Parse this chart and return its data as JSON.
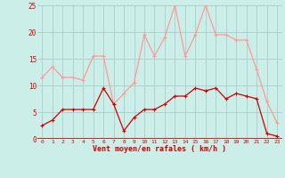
{
  "hours": [
    0,
    1,
    2,
    3,
    4,
    5,
    6,
    7,
    8,
    9,
    10,
    11,
    12,
    13,
    14,
    15,
    16,
    17,
    18,
    19,
    20,
    21,
    22,
    23
  ],
  "wind_avg": [
    2.5,
    3.5,
    5.5,
    5.5,
    5.5,
    5.5,
    9.5,
    6.5,
    1.5,
    4.0,
    5.5,
    5.5,
    6.5,
    8.0,
    8.0,
    9.5,
    9.0,
    9.5,
    7.5,
    8.5,
    8.0,
    7.5,
    1.0,
    0.5
  ],
  "wind_gust": [
    11.5,
    13.5,
    11.5,
    11.5,
    11.0,
    15.5,
    15.5,
    6.5,
    8.5,
    10.5,
    19.5,
    15.5,
    19.0,
    25.0,
    15.5,
    19.5,
    25.0,
    19.5,
    19.5,
    18.5,
    18.5,
    13.0,
    7.0,
    3.0
  ],
  "avg_color": "#cc0000",
  "gust_color": "#ff9999",
  "bg_color": "#cceee8",
  "grid_color": "#aacccc",
  "xlabel": "Vent moyen/en rafales ( km/h )",
  "xlabel_color": "#cc0000",
  "tick_color": "#cc0000",
  "ylim": [
    0,
    25
  ],
  "yticks": [
    0,
    5,
    10,
    15,
    20,
    25
  ]
}
